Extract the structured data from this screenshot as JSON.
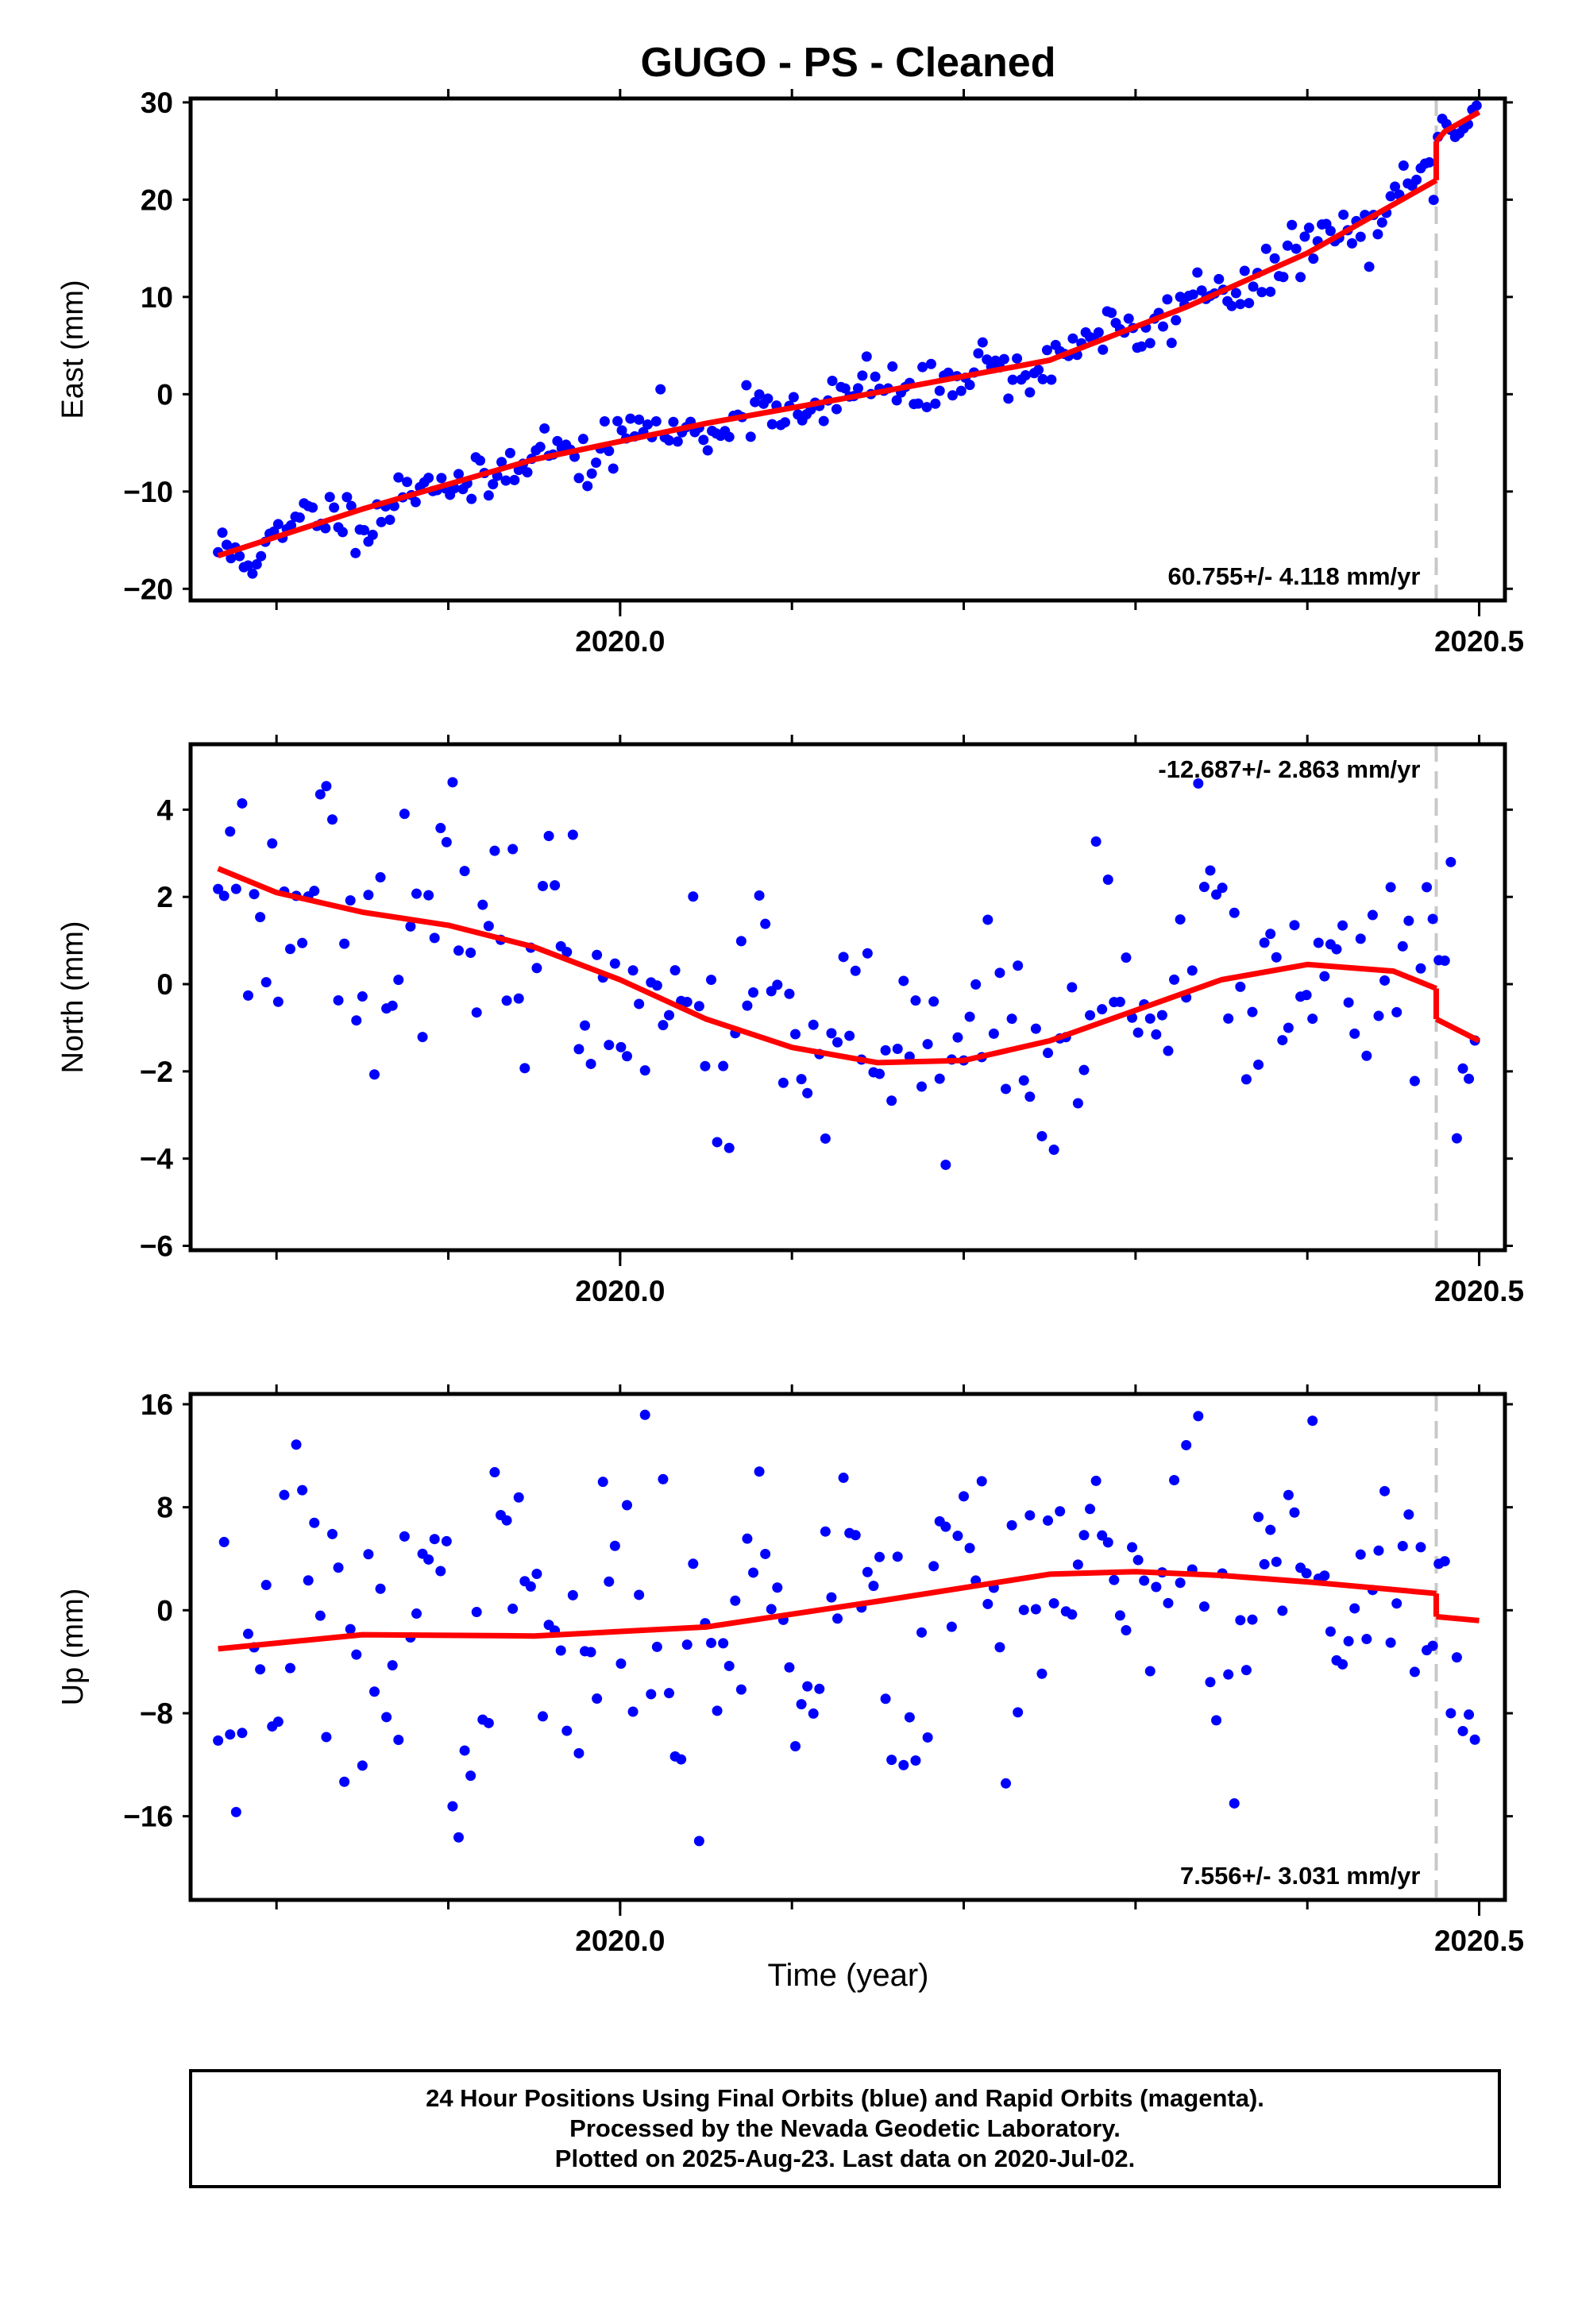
{
  "title": "GUGO  - PS - Cleaned",
  "x_axis_label": "Time (year)",
  "footer": [
    "24 Hour Positions Using Final Orbits (blue) and Rapid Orbits (magenta).",
    "Processed by the Nevada Geodetic Laboratory.",
    "Plotted on 2025-Aug-23. Last data on 2020-Jul-02."
  ],
  "colors": {
    "data_points": "#0000ff",
    "model": "#ff0000",
    "event_line": "#c8c8c8"
  },
  "chart_data": [
    {
      "type": "scatter",
      "ylabel": "East (mm)",
      "rate_text": "60.755+/- 4.118 mm/yr",
      "rate_position": "bottom-right",
      "xlim": [
        2019.75,
        2020.515
      ],
      "ylim": [
        -21.2,
        30.4
      ],
      "x_ticks": [
        2020.0,
        2020.5
      ],
      "x_tick_labels": [
        "2020.0",
        "2020.5"
      ],
      "y_ticks": [
        -20,
        -10,
        0,
        10,
        20,
        30
      ],
      "y_tick_labels": [
        "−20",
        "−10",
        "0",
        "10",
        "20",
        "30"
      ],
      "event_x": 2020.475,
      "model_segments": [
        {
          "x": [
            2019.766,
            2019.85,
            2019.95,
            2020.05,
            2020.15,
            2020.25,
            2020.33,
            2020.4,
            2020.475
          ],
          "y": [
            -16.6,
            -11.8,
            -6.7,
            -3.0,
            0.2,
            3.5,
            9.0,
            14.5,
            22.0
          ]
        },
        {
          "x": [
            2020.475,
            2020.48,
            2020.5
          ],
          "y": [
            26.0,
            27.0,
            29.0
          ]
        }
      ],
      "points_seed": 11,
      "points_step": 0.0025,
      "points_scatter": 1.2,
      "points_amp": 1.8
    },
    {
      "type": "scatter",
      "ylabel": "North (mm)",
      "rate_text": "-12.687+/- 2.863 mm/yr",
      "rate_position": "top-right",
      "xlim": [
        2019.75,
        2020.515
      ],
      "ylim": [
        -6.1,
        5.5
      ],
      "x_ticks": [
        2020.0,
        2020.5
      ],
      "x_tick_labels": [
        "2020.0",
        "2020.5"
      ],
      "y_ticks": [
        -6,
        -4,
        -2,
        0,
        2,
        4
      ],
      "y_tick_labels": [
        "−6",
        "−4",
        "−2",
        "0",
        "2",
        "4"
      ],
      "event_x": 2020.475,
      "model_segments": [
        {
          "x": [
            2019.766,
            2019.8,
            2019.85,
            2019.9,
            2019.95,
            2020.0,
            2020.05,
            2020.1,
            2020.15,
            2020.2,
            2020.25,
            2020.3,
            2020.35,
            2020.4,
            2020.45,
            2020.475
          ],
          "y": [
            2.65,
            2.1,
            1.65,
            1.35,
            0.85,
            0.1,
            -0.8,
            -1.45,
            -1.8,
            -1.75,
            -1.3,
            -0.6,
            0.1,
            0.45,
            0.3,
            -0.1
          ]
        },
        {
          "x": [
            2020.475,
            2020.5
          ],
          "y": [
            -0.8,
            -1.3
          ]
        }
      ],
      "points_seed": 23,
      "points_step": 0.0035,
      "points_scatter": 1.0,
      "points_amp": 1.7
    },
    {
      "type": "scatter",
      "ylabel": "Up (mm)",
      "rate_text": "7.556+/- 3.031 mm/yr",
      "rate_position": "bottom-right",
      "xlim": [
        2019.75,
        2020.515
      ],
      "ylim": [
        -22.5,
        16.8
      ],
      "x_ticks": [
        2020.0,
        2020.5
      ],
      "x_tick_labels": [
        "2020.0",
        "2020.5"
      ],
      "y_ticks": [
        -16,
        -8,
        0,
        8,
        16
      ],
      "y_tick_labels": [
        "−16",
        "−8",
        "0",
        "8",
        "16"
      ],
      "event_x": 2020.475,
      "model_segments": [
        {
          "x": [
            2019.766,
            2019.85,
            2019.95,
            2020.05,
            2020.15,
            2020.25,
            2020.3,
            2020.35,
            2020.4,
            2020.475
          ],
          "y": [
            -3.0,
            -1.9,
            -2.0,
            -1.3,
            0.7,
            2.8,
            3.0,
            2.7,
            2.2,
            1.3
          ]
        },
        {
          "x": [
            2020.475,
            2020.5
          ],
          "y": [
            -0.5,
            -0.8
          ]
        }
      ],
      "points_seed": 37,
      "points_step": 0.0035,
      "points_scatter": 4.5,
      "points_amp": 7.5
    }
  ]
}
